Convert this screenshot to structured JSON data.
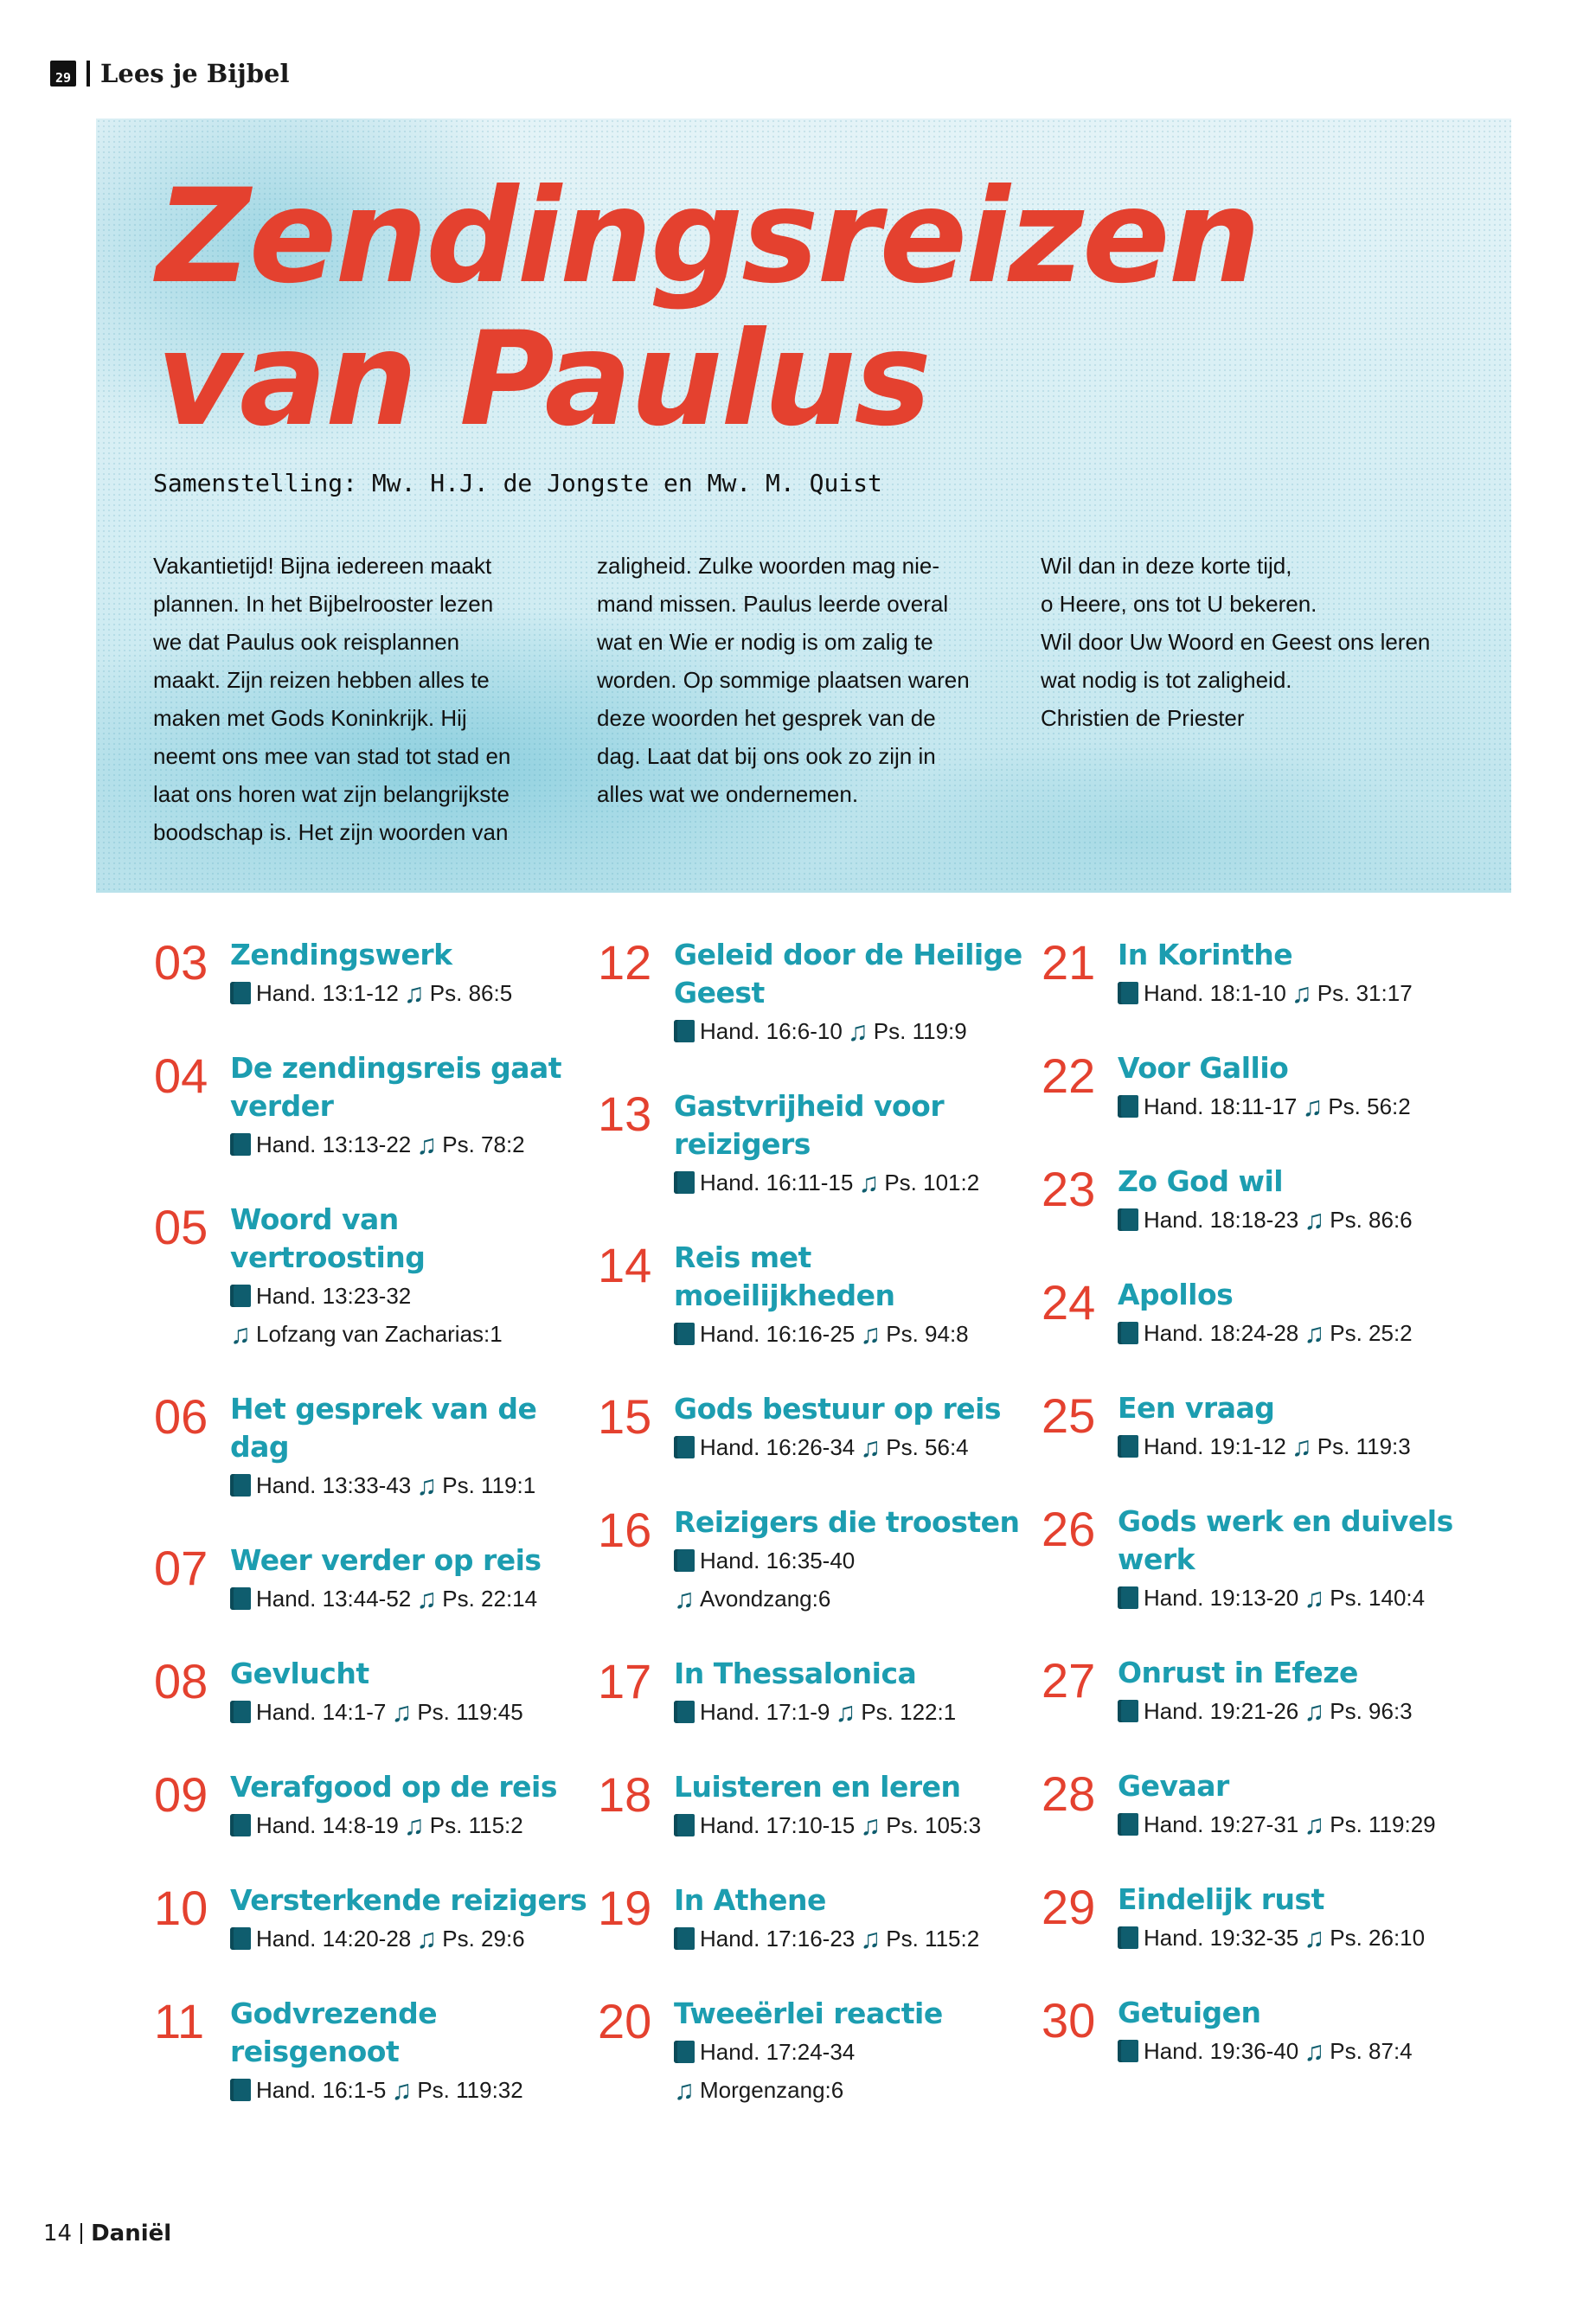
{
  "header": {
    "calendar_icon_text": "29",
    "section": "Lees je Bijbel"
  },
  "hero": {
    "title_line1": "Zendingsreizen",
    "title_line2": "van Paulus",
    "subtitle": "Samenstelling: Mw. H.J. de Jongste en Mw. M. Quist",
    "intro": [
      "Vakantietijd! Bijna iedereen maakt\nplannen. In het Bijbelrooster lezen\nwe dat Paulus ook reisplannen\nmaakt. Zijn reizen hebben alles te\nmaken met Gods Koninkrijk. Hij\nneemt ons mee van stad tot stad en\nlaat ons horen wat zijn belangrijkste\nboodschap is. Het zijn woorden van",
      "zaligheid. Zulke woorden mag nie-\nmand missen. Paulus leerde overal\nwat en Wie er nodig is om zalig te\nworden. Op sommige plaatsen waren\ndeze woorden het gesprek van de\ndag. Laat dat bij ons ook zo zijn in\nalles wat we ondernemen.",
      "Wil dan in deze korte tijd,\no Heere, ons tot U bekeren.\nWil door Uw Woord en Geest ons leren\nwat nodig is tot zaligheid.\nChristien de Priester"
    ]
  },
  "colors": {
    "accent_red": "#e4412f",
    "accent_teal": "#1c9db0",
    "icon_teal": "#0f5d6e"
  },
  "columns": [
    [
      {
        "num": "03",
        "title": "Zendingswerk",
        "lines": [
          [
            {
              "icon": "book",
              "text": "Hand. 13:1-12"
            },
            {
              "icon": "music",
              "text": "Ps. 86:5"
            }
          ]
        ]
      },
      {
        "num": "04",
        "title": "De zendingsreis gaat verder",
        "lines": [
          [
            {
              "icon": "book",
              "text": "Hand. 13:13-22"
            },
            {
              "icon": "music",
              "text": "Ps. 78:2"
            }
          ]
        ]
      },
      {
        "num": "05",
        "title": "Woord van vertroosting",
        "lines": [
          [
            {
              "icon": "book",
              "text": "Hand. 13:23-32"
            }
          ],
          [
            {
              "icon": "music",
              "text": "Lofzang van Zacharias:1"
            }
          ]
        ]
      },
      {
        "num": "06",
        "title": "Het gesprek van de dag",
        "lines": [
          [
            {
              "icon": "book",
              "text": "Hand. 13:33-43"
            },
            {
              "icon": "music",
              "text": "Ps. 119:1"
            }
          ]
        ]
      },
      {
        "num": "07",
        "title": "Weer verder op reis",
        "lines": [
          [
            {
              "icon": "book",
              "text": "Hand. 13:44-52"
            },
            {
              "icon": "music",
              "text": "Ps. 22:14"
            }
          ]
        ]
      },
      {
        "num": "08",
        "title": "Gevlucht",
        "lines": [
          [
            {
              "icon": "book",
              "text": "Hand. 14:1-7"
            },
            {
              "icon": "music",
              "text": "Ps. 119:45"
            }
          ]
        ]
      },
      {
        "num": "09",
        "title": "Verafgood op de reis",
        "lines": [
          [
            {
              "icon": "book",
              "text": "Hand. 14:8-19"
            },
            {
              "icon": "music",
              "text": "Ps. 115:2"
            }
          ]
        ]
      },
      {
        "num": "10",
        "title": "Versterkende reizigers",
        "lines": [
          [
            {
              "icon": "book",
              "text": "Hand. 14:20-28"
            },
            {
              "icon": "music",
              "text": "Ps. 29:6"
            }
          ]
        ]
      },
      {
        "num": "11",
        "title": "Godvrezende reisgenoot",
        "lines": [
          [
            {
              "icon": "book",
              "text": "Hand. 16:1-5"
            },
            {
              "icon": "music",
              "text": "Ps. 119:32"
            }
          ]
        ]
      }
    ],
    [
      {
        "num": "12",
        "title": "Geleid door de Heilige Geest",
        "lines": [
          [
            {
              "icon": "book",
              "text": "Hand. 16:6-10"
            },
            {
              "icon": "music",
              "text": "Ps. 119:9"
            }
          ]
        ]
      },
      {
        "num": "13",
        "title": "Gastvrijheid voor reizigers",
        "lines": [
          [
            {
              "icon": "book",
              "text": "Hand. 16:11-15"
            },
            {
              "icon": "music",
              "text": "Ps. 101:2"
            }
          ]
        ]
      },
      {
        "num": "14",
        "title": "Reis met moeilijkheden",
        "lines": [
          [
            {
              "icon": "book",
              "text": "Hand. 16:16-25"
            },
            {
              "icon": "music",
              "text": "Ps. 94:8"
            }
          ]
        ]
      },
      {
        "num": "15",
        "title": "Gods bestuur op reis",
        "lines": [
          [
            {
              "icon": "book",
              "text": "Hand. 16:26-34"
            },
            {
              "icon": "music",
              "text": "Ps. 56:4"
            }
          ]
        ]
      },
      {
        "num": "16",
        "title": "Reizigers die troosten",
        "lines": [
          [
            {
              "icon": "book",
              "text": "Hand. 16:35-40"
            }
          ],
          [
            {
              "icon": "music",
              "text": "Avondzang:6"
            }
          ]
        ]
      },
      {
        "num": "17",
        "title": "In Thessalonica",
        "lines": [
          [
            {
              "icon": "book",
              "text": "Hand. 17:1-9"
            },
            {
              "icon": "music",
              "text": "Ps. 122:1"
            }
          ]
        ]
      },
      {
        "num": "18",
        "title": "Luisteren en leren",
        "lines": [
          [
            {
              "icon": "book",
              "text": "Hand. 17:10-15"
            },
            {
              "icon": "music",
              "text": "Ps. 105:3"
            }
          ]
        ]
      },
      {
        "num": "19",
        "title": "In Athene",
        "lines": [
          [
            {
              "icon": "book",
              "text": "Hand. 17:16-23"
            },
            {
              "icon": "music",
              "text": "Ps. 115:2"
            }
          ]
        ]
      },
      {
        "num": "20",
        "title": "Tweeërlei reactie",
        "lines": [
          [
            {
              "icon": "book",
              "text": "Hand. 17:24-34"
            }
          ],
          [
            {
              "icon": "music",
              "text": "Morgenzang:6"
            }
          ]
        ]
      }
    ],
    [
      {
        "num": "21",
        "title": "In Korinthe",
        "lines": [
          [
            {
              "icon": "book",
              "text": "Hand. 18:1-10"
            },
            {
              "icon": "music",
              "text": "Ps. 31:17"
            }
          ]
        ]
      },
      {
        "num": "22",
        "title": "Voor Gallio",
        "lines": [
          [
            {
              "icon": "book",
              "text": "Hand. 18:11-17"
            },
            {
              "icon": "music",
              "text": "Ps. 56:2"
            }
          ]
        ]
      },
      {
        "num": "23",
        "title": "Zo God wil",
        "lines": [
          [
            {
              "icon": "book",
              "text": "Hand. 18:18-23"
            },
            {
              "icon": "music",
              "text": "Ps. 86:6"
            }
          ]
        ]
      },
      {
        "num": "24",
        "title": "Apollos",
        "lines": [
          [
            {
              "icon": "book",
              "text": "Hand. 18:24-28"
            },
            {
              "icon": "music",
              "text": "Ps. 25:2"
            }
          ]
        ]
      },
      {
        "num": "25",
        "title": "Een vraag",
        "lines": [
          [
            {
              "icon": "book",
              "text": "Hand. 19:1-12"
            },
            {
              "icon": "music",
              "text": "Ps. 119:3"
            }
          ]
        ]
      },
      {
        "num": "26",
        "title": "Gods werk en duivels werk",
        "lines": [
          [
            {
              "icon": "book",
              "text": "Hand. 19:13-20"
            },
            {
              "icon": "music",
              "text": "Ps. 140:4"
            }
          ]
        ]
      },
      {
        "num": "27",
        "title": "Onrust in Efeze",
        "lines": [
          [
            {
              "icon": "book",
              "text": "Hand. 19:21-26"
            },
            {
              "icon": "music",
              "text": "Ps. 96:3"
            }
          ]
        ]
      },
      {
        "num": "28",
        "title": "Gevaar",
        "lines": [
          [
            {
              "icon": "book",
              "text": "Hand. 19:27-31"
            },
            {
              "icon": "music",
              "text": "Ps. 119:29"
            }
          ]
        ]
      },
      {
        "num": "29",
        "title": "Eindelijk rust",
        "lines": [
          [
            {
              "icon": "book",
              "text": "Hand. 19:32-35"
            },
            {
              "icon": "music",
              "text": "Ps. 26:10"
            }
          ]
        ]
      },
      {
        "num": "30",
        "title": "Getuigen",
        "lines": [
          [
            {
              "icon": "book",
              "text": "Hand. 19:36-40"
            },
            {
              "icon": "music",
              "text": "Ps. 87:4"
            }
          ]
        ]
      }
    ]
  ],
  "footer": {
    "page": "14",
    "section": "Daniël"
  }
}
